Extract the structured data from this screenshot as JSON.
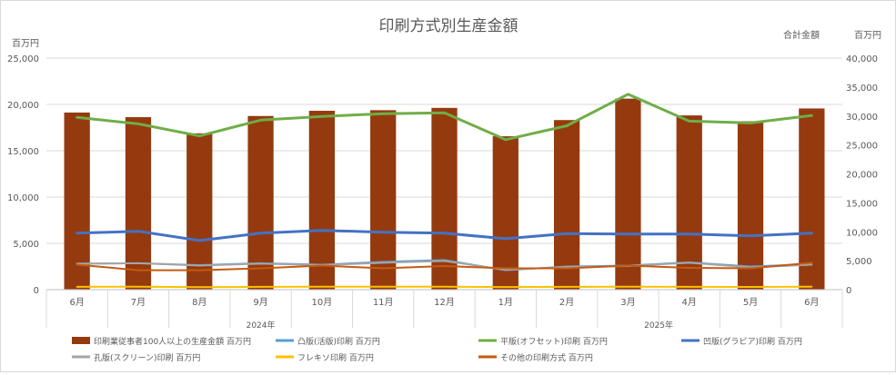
{
  "chart_data": {
    "type": "bar+line",
    "title": "印刷方式別生産金額",
    "left_axis_unit": "百万円",
    "right_axis_label": "合計金額",
    "right_axis_unit": "百万円",
    "left_ylim": [
      0,
      25000
    ],
    "left_ticks": [
      "0",
      "5,000",
      "10,000",
      "15,000",
      "20,000",
      "25,000"
    ],
    "right_ylim": [
      0,
      40000
    ],
    "right_ticks": [
      "0",
      "5,000",
      "10,000",
      "15,000",
      "20,000",
      "25,000",
      "30,000",
      "35,000",
      "40,000"
    ],
    "categories": [
      "6月",
      "7月",
      "8月",
      "9月",
      "10月",
      "11月",
      "12月",
      "1月",
      "2月",
      "3月",
      "4月",
      "5月",
      "6月"
    ],
    "year_groups": [
      {
        "label": "2024年",
        "count": 7
      },
      {
        "label": "2025年",
        "count": 6
      }
    ],
    "grid": "horizontal",
    "legend_position": "bottom",
    "bar_series": {
      "name": "印刷業従事者100人以上の生産金額 百万円",
      "axis": "right",
      "color": "#953a0f",
      "values": [
        30600,
        29800,
        27000,
        30000,
        30900,
        31000,
        31400,
        26500,
        29300,
        33000,
        30100,
        29100,
        31300
      ]
    },
    "line_series": [
      {
        "name": "凸版(活版)印刷 百万円",
        "axis": "left",
        "color": "#5b9bd5",
        "values": [
          2800,
          2850,
          2650,
          2850,
          2700,
          3000,
          3200,
          2100,
          2500,
          2600,
          2950,
          2500,
          2750
        ]
      },
      {
        "name": "平版(オフセット)印刷 百万円",
        "axis": "left",
        "color": "#70ad47",
        "values": [
          18600,
          17900,
          16600,
          18300,
          18700,
          19000,
          19100,
          16200,
          17700,
          21100,
          18200,
          18000,
          18800
        ]
      },
      {
        "name": "凹版(グラビア)印刷 百万円",
        "axis": "left",
        "color": "#4472c4",
        "values": [
          6100,
          6300,
          5300,
          6100,
          6400,
          6200,
          6100,
          5500,
          6050,
          6000,
          6000,
          5800,
          6100
        ]
      },
      {
        "name": "孔版(スクリーン)印刷 百万円",
        "axis": "left",
        "color": "#a5a5a5",
        "values": [
          2800,
          2850,
          2600,
          2800,
          2650,
          2900,
          3100,
          2150,
          2450,
          2550,
          2900,
          2400,
          2700
        ]
      },
      {
        "name": "フレキソ印刷 百万円",
        "axis": "left",
        "color": "#ffc000",
        "values": [
          300,
          320,
          260,
          300,
          320,
          310,
          320,
          280,
          300,
          310,
          300,
          290,
          320
        ]
      },
      {
        "name": "その他の印刷方式 百万円",
        "axis": "left",
        "color": "#c55a11",
        "values": [
          2700,
          2100,
          2100,
          2300,
          2600,
          2300,
          2550,
          2300,
          2300,
          2600,
          2350,
          2300,
          2900
        ]
      }
    ]
  }
}
